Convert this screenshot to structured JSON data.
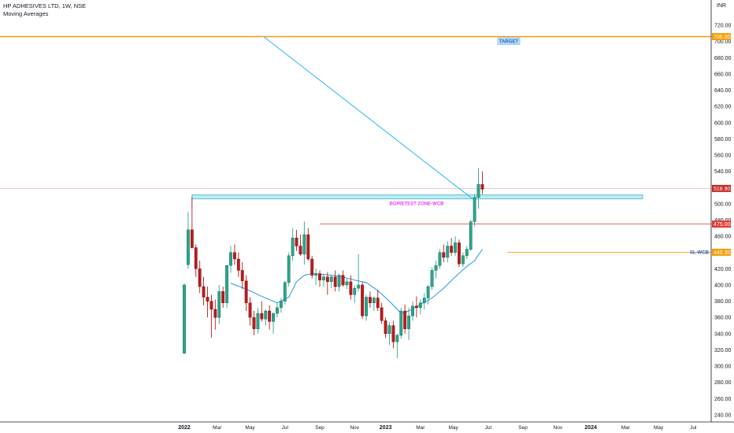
{
  "header": {
    "symbol_title": "HP ADHESIVES LTD, 1W, NSE",
    "indicator": "Moving Averages",
    "currency": "INR"
  },
  "chart_data": {
    "type": "candlestick",
    "y_ticks": [
      720,
      700,
      680,
      660,
      640,
      620,
      600,
      580,
      560,
      540,
      520,
      500,
      480,
      460,
      440,
      420,
      400,
      380,
      360,
      340,
      320,
      300,
      280,
      260,
      240
    ],
    "y_tick_labels": [
      "720.00",
      "700.00",
      "680.00",
      "660.00",
      "640.00",
      "620.00",
      "600.00",
      "580.00",
      "560.00",
      "540.00",
      "520.00",
      "500.00",
      "480.00",
      "460.00",
      "440.00",
      "420.00",
      "400.00",
      "380.00",
      "360.00",
      "340.00",
      "320.00",
      "300.00",
      "280.00",
      "260.00",
      "240.00"
    ],
    "ylim": [
      230,
      730
    ],
    "x_ticks": [
      {
        "label": "2022",
        "week": 0,
        "year": true
      },
      {
        "label": "Mar",
        "week": 8.5,
        "year": false
      },
      {
        "label": "May",
        "week": 17,
        "year": false
      },
      {
        "label": "Jul",
        "week": 26,
        "year": false
      },
      {
        "label": "Sep",
        "week": 35,
        "year": false
      },
      {
        "label": "Nov",
        "week": 44,
        "year": false
      },
      {
        "label": "2023",
        "week": 52,
        "year": true
      },
      {
        "label": "Mar",
        "week": 61,
        "year": false
      },
      {
        "label": "May",
        "week": 69.5,
        "year": false
      },
      {
        "label": "Jul",
        "week": 78.5,
        "year": false
      },
      {
        "label": "Sep",
        "week": 87.5,
        "year": false
      },
      {
        "label": "Nov",
        "week": 96.5,
        "year": false
      },
      {
        "label": "2024",
        "week": 105,
        "year": true
      },
      {
        "label": "Mar",
        "week": 114,
        "year": false
      },
      {
        "label": "May",
        "week": 122.5,
        "year": false
      },
      {
        "label": "Jul",
        "week": 131.5,
        "year": false
      }
    ],
    "candles": [
      {
        "o": 316,
        "h": 402,
        "l": 315,
        "c": 400
      },
      {
        "o": 425,
        "h": 490,
        "l": 420,
        "c": 468
      },
      {
        "o": 468,
        "h": 508,
        "l": 445,
        "c": 446
      },
      {
        "o": 446,
        "h": 450,
        "l": 410,
        "c": 420
      },
      {
        "o": 420,
        "h": 430,
        "l": 390,
        "c": 398
      },
      {
        "o": 398,
        "h": 410,
        "l": 375,
        "c": 385
      },
      {
        "o": 385,
        "h": 398,
        "l": 360,
        "c": 380
      },
      {
        "o": 380,
        "h": 388,
        "l": 335,
        "c": 370
      },
      {
        "o": 370,
        "h": 382,
        "l": 345,
        "c": 360
      },
      {
        "o": 360,
        "h": 400,
        "l": 352,
        "c": 392
      },
      {
        "o": 392,
        "h": 398,
        "l": 372,
        "c": 378
      },
      {
        "o": 378,
        "h": 425,
        "l": 372,
        "c": 424
      },
      {
        "o": 424,
        "h": 448,
        "l": 415,
        "c": 440
      },
      {
        "o": 440,
        "h": 450,
        "l": 425,
        "c": 432
      },
      {
        "o": 432,
        "h": 440,
        "l": 410,
        "c": 418
      },
      {
        "o": 418,
        "h": 428,
        "l": 395,
        "c": 405
      },
      {
        "o": 405,
        "h": 412,
        "l": 368,
        "c": 378
      },
      {
        "o": 378,
        "h": 385,
        "l": 350,
        "c": 360
      },
      {
        "o": 360,
        "h": 368,
        "l": 338,
        "c": 346
      },
      {
        "o": 346,
        "h": 372,
        "l": 340,
        "c": 365
      },
      {
        "o": 365,
        "h": 380,
        "l": 355,
        "c": 358
      },
      {
        "o": 358,
        "h": 370,
        "l": 350,
        "c": 368
      },
      {
        "o": 368,
        "h": 375,
        "l": 345,
        "c": 355
      },
      {
        "o": 355,
        "h": 366,
        "l": 340,
        "c": 365
      },
      {
        "o": 365,
        "h": 378,
        "l": 360,
        "c": 372
      },
      {
        "o": 372,
        "h": 384,
        "l": 366,
        "c": 380
      },
      {
        "o": 380,
        "h": 405,
        "l": 376,
        "c": 403
      },
      {
        "o": 403,
        "h": 440,
        "l": 398,
        "c": 436
      },
      {
        "o": 436,
        "h": 470,
        "l": 430,
        "c": 458
      },
      {
        "o": 458,
        "h": 468,
        "l": 442,
        "c": 448
      },
      {
        "o": 448,
        "h": 462,
        "l": 436,
        "c": 438
      },
      {
        "o": 438,
        "h": 478,
        "l": 425,
        "c": 462
      },
      {
        "o": 462,
        "h": 470,
        "l": 430,
        "c": 432
      },
      {
        "o": 432,
        "h": 436,
        "l": 408,
        "c": 412
      },
      {
        "o": 412,
        "h": 420,
        "l": 400,
        "c": 414
      },
      {
        "o": 414,
        "h": 418,
        "l": 398,
        "c": 406
      },
      {
        "o": 406,
        "h": 414,
        "l": 398,
        "c": 410
      },
      {
        "o": 410,
        "h": 416,
        "l": 388,
        "c": 404
      },
      {
        "o": 404,
        "h": 412,
        "l": 396,
        "c": 410
      },
      {
        "o": 410,
        "h": 418,
        "l": 392,
        "c": 398
      },
      {
        "o": 398,
        "h": 414,
        "l": 392,
        "c": 412
      },
      {
        "o": 412,
        "h": 418,
        "l": 398,
        "c": 400
      },
      {
        "o": 400,
        "h": 408,
        "l": 395,
        "c": 404
      },
      {
        "o": 404,
        "h": 412,
        "l": 382,
        "c": 388
      },
      {
        "o": 388,
        "h": 400,
        "l": 378,
        "c": 396
      },
      {
        "o": 396,
        "h": 438,
        "l": 392,
        "c": 400
      },
      {
        "o": 400,
        "h": 404,
        "l": 358,
        "c": 362
      },
      {
        "o": 362,
        "h": 388,
        "l": 356,
        "c": 385
      },
      {
        "o": 385,
        "h": 392,
        "l": 372,
        "c": 378
      },
      {
        "o": 378,
        "h": 386,
        "l": 368,
        "c": 384
      },
      {
        "o": 384,
        "h": 394,
        "l": 368,
        "c": 372
      },
      {
        "o": 372,
        "h": 378,
        "l": 352,
        "c": 356
      },
      {
        "o": 356,
        "h": 360,
        "l": 335,
        "c": 340
      },
      {
        "o": 340,
        "h": 354,
        "l": 326,
        "c": 350
      },
      {
        "o": 350,
        "h": 356,
        "l": 322,
        "c": 330
      },
      {
        "o": 330,
        "h": 340,
        "l": 310,
        "c": 338
      },
      {
        "o": 338,
        "h": 372,
        "l": 334,
        "c": 368
      },
      {
        "o": 368,
        "h": 376,
        "l": 340,
        "c": 346
      },
      {
        "o": 346,
        "h": 372,
        "l": 332,
        "c": 362
      },
      {
        "o": 362,
        "h": 380,
        "l": 356,
        "c": 374
      },
      {
        "o": 374,
        "h": 386,
        "l": 360,
        "c": 372
      },
      {
        "o": 372,
        "h": 382,
        "l": 364,
        "c": 378
      },
      {
        "o": 378,
        "h": 390,
        "l": 370,
        "c": 384
      },
      {
        "o": 384,
        "h": 400,
        "l": 376,
        "c": 398
      },
      {
        "o": 398,
        "h": 422,
        "l": 394,
        "c": 418
      },
      {
        "o": 418,
        "h": 430,
        "l": 408,
        "c": 424
      },
      {
        "o": 424,
        "h": 444,
        "l": 420,
        "c": 440
      },
      {
        "o": 440,
        "h": 450,
        "l": 428,
        "c": 434
      },
      {
        "o": 434,
        "h": 454,
        "l": 428,
        "c": 448
      },
      {
        "o": 448,
        "h": 458,
        "l": 436,
        "c": 440
      },
      {
        "o": 440,
        "h": 460,
        "l": 436,
        "c": 452
      },
      {
        "o": 452,
        "h": 456,
        "l": 422,
        "c": 426
      },
      {
        "o": 426,
        "h": 440,
        "l": 422,
        "c": 436
      },
      {
        "o": 436,
        "h": 448,
        "l": 432,
        "c": 444
      },
      {
        "o": 444,
        "h": 480,
        "l": 442,
        "c": 478
      },
      {
        "o": 478,
        "h": 512,
        "l": 472,
        "c": 508
      },
      {
        "o": 508,
        "h": 544,
        "l": 494,
        "c": 524
      },
      {
        "o": 524,
        "h": 540,
        "l": 512,
        "c": 518
      }
    ],
    "moving_average": [
      [
        12,
        402
      ],
      [
        16,
        395
      ],
      [
        20,
        386
      ],
      [
        24,
        378
      ],
      [
        27,
        385
      ],
      [
        29,
        404
      ],
      [
        31,
        412
      ],
      [
        33,
        414
      ],
      [
        36,
        413
      ],
      [
        40,
        411
      ],
      [
        44,
        406
      ],
      [
        47,
        403
      ],
      [
        50,
        393
      ],
      [
        53,
        380
      ],
      [
        56,
        365
      ],
      [
        58,
        368
      ],
      [
        61,
        376
      ],
      [
        64,
        384
      ],
      [
        67,
        396
      ],
      [
        70,
        410
      ],
      [
        73,
        423
      ],
      [
        75,
        430
      ],
      [
        77,
        444
      ]
    ],
    "target": {
      "value": 706,
      "label": "TARGET",
      "price_label": "706.00",
      "color": "#f59e0b"
    },
    "current_price": {
      "value": 518.9,
      "label": "518.90",
      "color": "#c62828"
    },
    "level_475": {
      "value": 475,
      "label": "475.00",
      "color": "#e53935"
    },
    "sl": {
      "value": 440.3,
      "label": "440.30",
      "text": "SL-WCB",
      "color": "#f59e0b"
    },
    "zone": {
      "top": 511,
      "bottom": 506,
      "label": "BO/RETEST ZONE-WCB",
      "color": "#80deea"
    },
    "trend_line": {
      "from_week": 20.5,
      "from_value": 706,
      "to_week": 74.5,
      "to_value": 506,
      "color": "#29b6f6"
    },
    "colors": {
      "up": "#26a69a",
      "down": "#b71c1c",
      "grid": "#ffffff",
      "axis": "#131722",
      "ma": "#2196f3"
    }
  }
}
